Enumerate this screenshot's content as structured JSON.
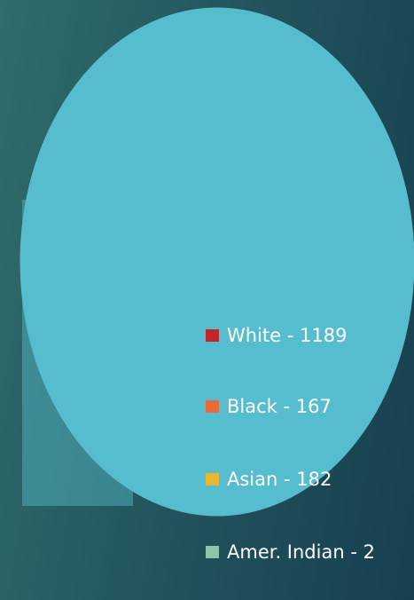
{
  "chart_data": {
    "type": "pie",
    "slice_color": "#56bdcf",
    "series": [
      {
        "name": "White - 1189",
        "color": "#c0262c",
        "values": [
          1189
        ]
      },
      {
        "name": "Black - 167",
        "color": "#e8693a",
        "values": [
          167
        ]
      },
      {
        "name": "Asian - 182",
        "color": "#e8b830",
        "values": [
          182
        ]
      },
      {
        "name": "Amer. Indian - 2",
        "color": "#8fc4a8",
        "values": [
          2
        ]
      }
    ]
  }
}
